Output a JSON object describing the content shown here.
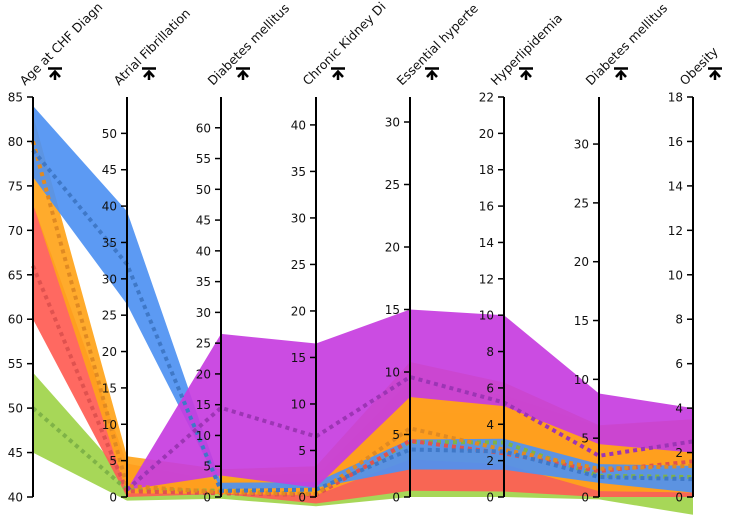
{
  "colors": {
    "background": "#ffffff",
    "axis": "#000000",
    "bands": [
      "#9fd44a",
      "#ff5c54",
      "#ffa41a",
      "#4e91f2",
      "#c73de0"
    ],
    "medians": [
      "#7fb347",
      "#e0524f",
      "#e08a22",
      "#3f78c7",
      "#9c35b4"
    ]
  },
  "chart_data": {
    "type": "parallel-coordinates",
    "axes": [
      {
        "label": "Age at CHF Diagnosis",
        "label_shown": "Age at CHF Diagn",
        "min": 40,
        "max": 85,
        "ticks": [
          40,
          45,
          50,
          55,
          60,
          65,
          70,
          75,
          80,
          85
        ],
        "tick_side": "left"
      },
      {
        "label": "Atrial Fibrillation",
        "label_shown": "Atrial Fibrillation",
        "min": 0,
        "max": 55,
        "ticks": [
          0,
          5,
          10,
          15,
          20,
          25,
          30,
          35,
          40,
          45,
          50
        ],
        "tick_side": "left"
      },
      {
        "label": "Diabetes mellitus",
        "label_shown": "Diabetes mellitus",
        "min": 0,
        "max": 65,
        "ticks": [
          0,
          5,
          10,
          15,
          20,
          25,
          30,
          35,
          40,
          45,
          50,
          55,
          60
        ],
        "tick_side": "left"
      },
      {
        "label": "Chronic Kidney Disease",
        "label_shown": "Chronic Kidney Di",
        "min": 0,
        "max": 43,
        "ticks": [
          0,
          5,
          10,
          15,
          20,
          25,
          30,
          35,
          40
        ],
        "tick_side": "left"
      },
      {
        "label": "Essential hypertension",
        "label_shown": "Essential hyperte",
        "min": 0,
        "max": 32,
        "ticks": [
          0,
          5,
          10,
          15,
          20,
          25,
          30
        ],
        "tick_side": "left"
      },
      {
        "label": "Hyperlipidemia",
        "label_shown": "Hyperlipidemia",
        "min": 0,
        "max": 22,
        "ticks": [
          0,
          2,
          4,
          6,
          8,
          10,
          12,
          14,
          16,
          18,
          20,
          22
        ],
        "tick_side": "left"
      },
      {
        "label": "Diabetes mellitus",
        "label_shown": "Diabetes mellitus",
        "min": 0,
        "max": 34,
        "ticks": [
          0,
          5,
          10,
          15,
          20,
          25,
          30
        ],
        "tick_side": "left"
      },
      {
        "label": "Obesity",
        "label_shown": "Obesity",
        "min": 0,
        "max": 18,
        "ticks": [
          0,
          2,
          4,
          6,
          8,
          10,
          12,
          14,
          16,
          18
        ],
        "tick_side": "left"
      }
    ],
    "series": [
      {
        "color": "#9fd44a",
        "lower": [
          45,
          -0.5,
          -0.3,
          -1.0,
          0,
          0,
          -0.2,
          -0.8
        ],
        "upper": [
          54,
          2.5,
          3.5,
          2.5,
          6.8,
          4.6,
          4.2,
          2.8
        ],
        "median": [
          50,
          1.0,
          1.0,
          0.3,
          4.4,
          3.0,
          1.8,
          0.9
        ]
      },
      {
        "color": "#ff5c54",
        "lower": [
          60,
          0,
          0.5,
          -0.7,
          0.5,
          0.3,
          0,
          0
        ],
        "upper": [
          73,
          4.6,
          2.5,
          2.2,
          9.3,
          5.6,
          6.0,
          3.5
        ],
        "median": [
          66,
          0.8,
          0.6,
          0.2,
          4.5,
          2.4,
          2.2,
          1.6
        ]
      },
      {
        "color": "#ffa41a",
        "lower": [
          73,
          0.5,
          0.5,
          0.2,
          3.0,
          1.8,
          0.5,
          0.2
        ],
        "upper": [
          83,
          5.6,
          4.5,
          3.3,
          10.8,
          6.3,
          6.1,
          3.5
        ],
        "median": [
          80,
          1.5,
          0.8,
          0.3,
          5.5,
          2.6,
          2.4,
          1.4
        ]
      },
      {
        "color": "#4e91f2",
        "lower": [
          76,
          26.5,
          1.3,
          1.0,
          2.2,
          1.5,
          1.2,
          0.2
        ],
        "upper": [
          84,
          39.3,
          2.3,
          1.6,
          4.6,
          3.2,
          2.8,
          1.4
        ],
        "median": [
          79,
          32.0,
          1.0,
          0.8,
          3.8,
          2.5,
          1.7,
          0.8
        ]
      },
      {
        "color": "#c73de0",
        "lower": [
          -1,
          1.0,
          3.5,
          1.0,
          8.0,
          5.0,
          4.5,
          2.0
        ],
        "upper": [
          -1,
          1.0,
          26.5,
          16.5,
          15.0,
          10.0,
          8.8,
          4.0
        ],
        "median": [
          -1,
          1.0,
          14.5,
          6.5,
          9.6,
          5.2,
          3.5,
          2.5
        ],
        "starts_at_axis": 1
      }
    ]
  }
}
